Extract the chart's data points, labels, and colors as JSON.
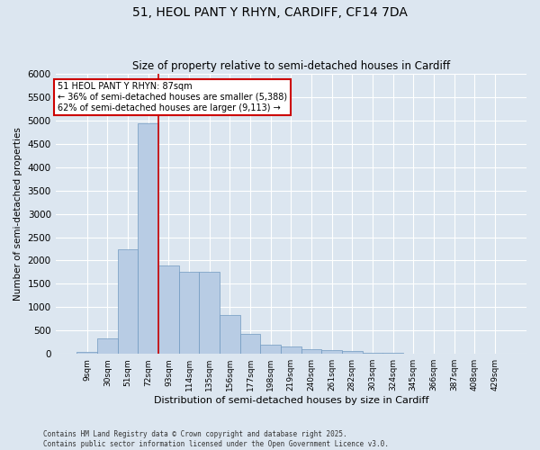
{
  "title_line1": "51, HEOL PANT Y RHYN, CARDIFF, CF14 7DA",
  "title_line2": "Size of property relative to semi-detached houses in Cardiff",
  "xlabel": "Distribution of semi-detached houses by size in Cardiff",
  "ylabel": "Number of semi-detached properties",
  "categories": [
    "9sqm",
    "30sqm",
    "51sqm",
    "72sqm",
    "93sqm",
    "114sqm",
    "135sqm",
    "156sqm",
    "177sqm",
    "198sqm",
    "219sqm",
    "240sqm",
    "261sqm",
    "282sqm",
    "303sqm",
    "324sqm",
    "345sqm",
    "366sqm",
    "387sqm",
    "408sqm",
    "429sqm"
  ],
  "values": [
    50,
    330,
    2250,
    4950,
    1900,
    1750,
    1750,
    830,
    420,
    200,
    150,
    110,
    80,
    60,
    30,
    20,
    10,
    5,
    2,
    1,
    1
  ],
  "bar_color": "#b8cce4",
  "bar_edge_color": "#7099c0",
  "annotation_title": "51 HEOL PANT Y RHYN: 87sqm",
  "annotation_line2": "← 36% of semi-detached houses are smaller (5,388)",
  "annotation_line3": "62% of semi-detached houses are larger (9,113) →",
  "annotation_box_color": "#ffffff",
  "annotation_box_edge": "#cc0000",
  "vline_color": "#cc0000",
  "vline_pos": 3.5,
  "ylim": [
    0,
    6000
  ],
  "yticks": [
    0,
    500,
    1000,
    1500,
    2000,
    2500,
    3000,
    3500,
    4000,
    4500,
    5000,
    5500,
    6000
  ],
  "background_color": "#dce6f0",
  "grid_color": "#ffffff",
  "footer_line1": "Contains HM Land Registry data © Crown copyright and database right 2025.",
  "footer_line2": "Contains public sector information licensed under the Open Government Licence v3.0."
}
